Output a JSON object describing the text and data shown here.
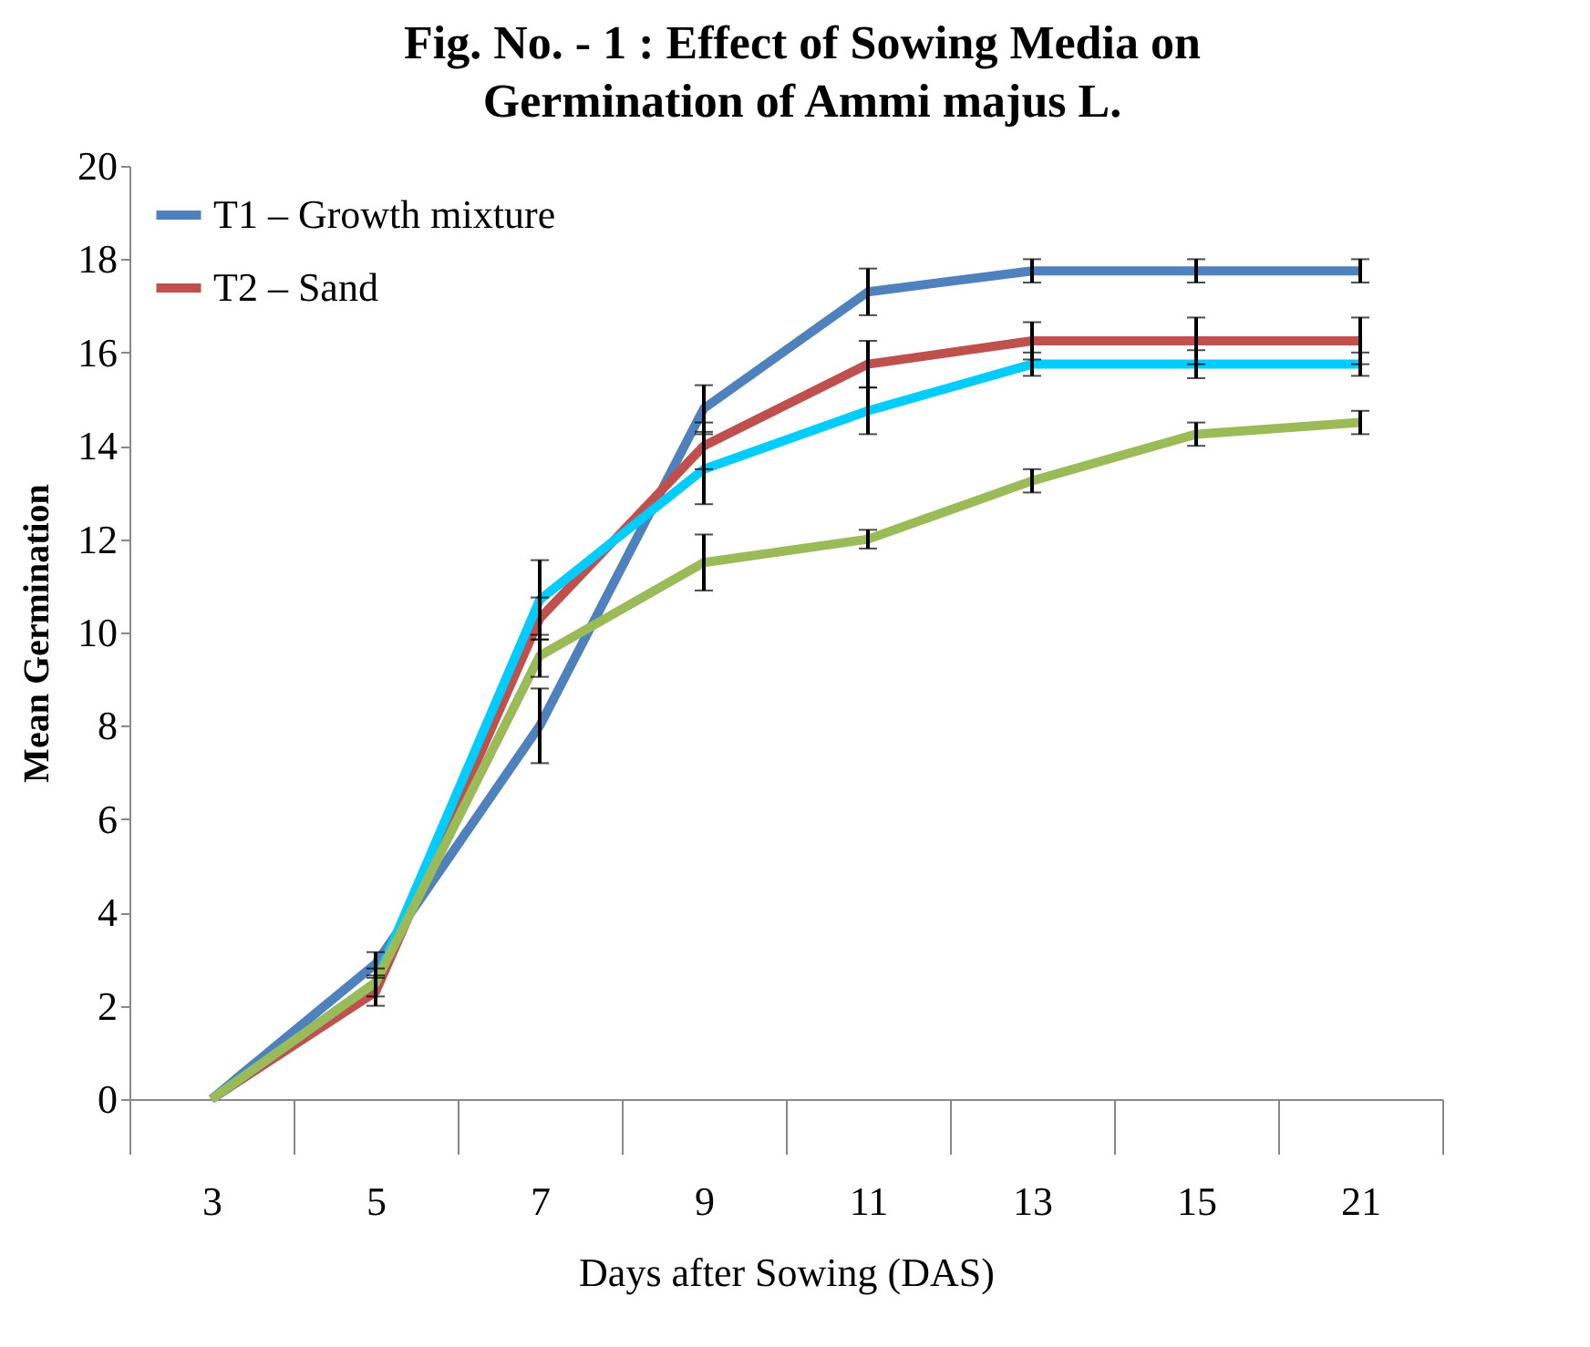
{
  "chart_data": {
    "type": "line",
    "title": "Fig. No. - 1 : Effect of Sowing Media on Germination of Ammi majus L.",
    "xlabel": "Days after Sowing (DAS)",
    "ylabel": "Mean Germination",
    "categories": [
      "3",
      "5",
      "7",
      "9",
      "11",
      "13",
      "15",
      "21"
    ],
    "ylim": [
      0,
      20
    ],
    "yticks": [
      0,
      2,
      4,
      6,
      8,
      10,
      12,
      14,
      16,
      18,
      20
    ],
    "legend": "top left",
    "grid": false,
    "series": [
      {
        "name": "T1 – Growth mixture",
        "color": "#4f81bd",
        "values": [
          0,
          2.9,
          8.0,
          14.8,
          17.3,
          17.75,
          17.75,
          17.75
        ],
        "errors": [
          null,
          0.25,
          0.8,
          0.5,
          0.5,
          0.25,
          0.25,
          0.25
        ]
      },
      {
        "name": "T2 – Sand",
        "color": "#c0504d",
        "values": [
          0,
          2.3,
          10.3,
          14.0,
          15.75,
          16.25,
          16.25,
          16.25
        ],
        "errors": [
          null,
          0.3,
          0.45,
          0.5,
          0.5,
          0.4,
          0.5,
          0.5
        ]
      },
      {
        "color": "#00ccff",
        "values": [
          0,
          2.5,
          10.7,
          13.5,
          14.75,
          15.75,
          15.75,
          15.75
        ],
        "errors": [
          null,
          0.3,
          0.85,
          0.75,
          0.5,
          0.25,
          0.3,
          0.25
        ]
      },
      {
        "color": "#9bbb59",
        "values": [
          0,
          2.5,
          9.5,
          11.5,
          12.0,
          13.25,
          14.25,
          14.5
        ],
        "errors": [
          null,
          null,
          0.45,
          0.6,
          0.2,
          0.25,
          0.25,
          0.25
        ]
      }
    ]
  }
}
